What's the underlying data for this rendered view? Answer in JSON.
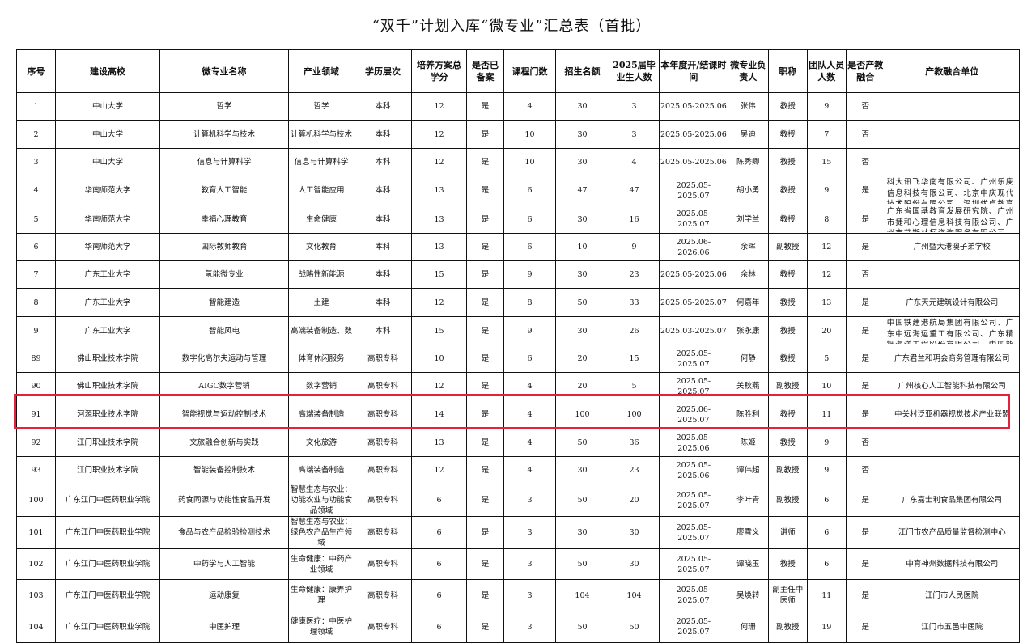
{
  "title": "“双千”计划入库“微专业”汇总表（首批）",
  "highlight_color": "#e3223c",
  "columns": [
    "序号",
    "建设高校",
    "微专业名称",
    "产业领域",
    "学历层次",
    "培养方案总学分",
    "是否已备案",
    "课程门数",
    "招生名额",
    "2025届毕业生人数",
    "本年度开/结课时间",
    "微专业负责人",
    "职称",
    "团队人员人数",
    "是否产教融合",
    "产教融合单位"
  ],
  "rows": [
    [
      "1",
      "中山大学",
      "哲学",
      "哲学",
      "本科",
      "12",
      "是",
      "4",
      "30",
      "3",
      "2025.05-2025.06",
      "张伟",
      "教授",
      "9",
      "否",
      ""
    ],
    [
      "2",
      "中山大学",
      "计算机科学与技术",
      "计算机科学与技术",
      "本科",
      "12",
      "是",
      "10",
      "30",
      "3",
      "2025.05-2025.06",
      "吴迪",
      "教授",
      "7",
      "否",
      ""
    ],
    [
      "3",
      "中山大学",
      "信息与计算科学",
      "信息与计算科学",
      "本科",
      "12",
      "是",
      "10",
      "30",
      "4",
      "2025.05-2025.06",
      "陈秀卿",
      "教授",
      "15",
      "否",
      ""
    ],
    [
      "4",
      "华南师范大学",
      "教育人工智能",
      "人工智能应用",
      "本科",
      "13",
      "是",
      "6",
      "47",
      "47",
      "2025.05-2025.07",
      "胡小勇",
      "教授",
      "9",
      "是",
      "科大讯飞华南有限公司、广州乐庚信息科技有限公司、北京中庆现代技术股份有限公司、深圳优卓教育科技有"
    ],
    [
      "5",
      "华南师范大学",
      "幸福心理教育",
      "生命健康",
      "本科",
      "13",
      "是",
      "6",
      "30",
      "16",
      "2025.05-2025.07",
      "刘学兰",
      "教授",
      "8",
      "是",
      "广东省国基教育发展研究院、广州市捷和心理信息科技有限公司、广州市艾斯林柯咨询服务有限公司、广东数"
    ],
    [
      "6",
      "华南师范大学",
      "国际教师教育",
      "文化教育",
      "本科",
      "13",
      "是",
      "6",
      "10",
      "9",
      "2025.06-2026.06",
      "余晖",
      "副教授",
      "12",
      "是",
      "广州暨大港澳子弟学校"
    ],
    [
      "7",
      "广东工业大学",
      "氢能微专业",
      "战略性新能源",
      "本科",
      "15",
      "是",
      "9",
      "30",
      "23",
      "2025.05-2025.06",
      "余林",
      "教授",
      "12",
      "否",
      ""
    ],
    [
      "8",
      "广东工业大学",
      "智能建造",
      "土建",
      "本科",
      "12",
      "是",
      "8",
      "50",
      "33",
      "2025.05-2025.07",
      "何嘉年",
      "教授",
      "13",
      "是",
      "广东天元建筑设计有限公司"
    ],
    [
      "9",
      "广东工业大学",
      "智能风电",
      "高端装备制造、数",
      "本科",
      "15",
      "是",
      "9",
      "30",
      "26",
      "2025.03-2025.07",
      "张永康",
      "教授",
      "20",
      "是",
      "中国铁建港航局集团有限公司、广东中远海运重工有限公司、广东精铟海洋工程股份有限公司、中国能源建设"
    ],
    [
      "89",
      "佛山职业技术学院",
      "数字化高尔夫运动与管理",
      "体育休闲服务",
      "高职专科",
      "10",
      "是",
      "6",
      "20",
      "15",
      "2025.05-2025.07",
      "何静",
      "教授",
      "5",
      "是",
      "广东君兰和玥会商务管理有限公司"
    ],
    [
      "90",
      "佛山职业技术学院",
      "AIGC数字营销",
      "数字营销",
      "高职专科",
      "12",
      "是",
      "4",
      "20",
      "5",
      "2025.05-2025.07",
      "关秋燕",
      "副教授",
      "10",
      "是",
      "广州核心人工智能科技有限公司"
    ],
    [
      "91",
      "河源职业技术学院",
      "智能视觉与运动控制技术",
      "高端装备制造",
      "高职专科",
      "14",
      "是",
      "4",
      "100",
      "100",
      "2025.06-2025.07",
      "陈胜利",
      "教授",
      "11",
      "是",
      "中关村泛亚机器视觉技术产业联盟"
    ],
    [
      "92",
      "江门职业技术学院",
      "文旅融合创新与实践",
      "文化旅游",
      "高职专科",
      "13",
      "是",
      "4",
      "50",
      "36",
      "2025.05-2025.06",
      "陈姬",
      "教授",
      "9",
      "否",
      ""
    ],
    [
      "93",
      "江门职业技术学院",
      "智能装备控制技术",
      "高端装备制造",
      "高职专科",
      "12",
      "是",
      "4",
      "30",
      "23",
      "2025.05-2025.06",
      "谭伟超",
      "副教授",
      "9",
      "否",
      ""
    ],
    [
      "100",
      "广东江门中医药职业学院",
      "药食同源与功能性食品开发",
      "智慧生态与农业：功能农业与功能食品领域",
      "高职专科",
      "6",
      "是",
      "3",
      "50",
      "20",
      "2025.05-2025.07",
      "李叶青",
      "副教授",
      "6",
      "是",
      "广东嘉士利食品集团有限公司"
    ],
    [
      "101",
      "广东江门中医药职业学院",
      "食品与农产品检验检测技术",
      "智慧生态与农业：绿色农产品生产领域",
      "高职专科",
      "6",
      "是",
      "3",
      "30",
      "30",
      "2025.05-2025.07",
      "廖雪义",
      "讲师",
      "6",
      "是",
      "江门市农产品质量监督检测中心"
    ],
    [
      "102",
      "广东江门中医药职业学院",
      "中药学与人工智能",
      "生命健康：中药产业领域",
      "高职专科",
      "6",
      "是",
      "3",
      "50",
      "30",
      "2025.05-2025.07",
      "谭晓玉",
      "教授",
      "6",
      "是",
      "中育神州数据科技有限公司"
    ],
    [
      "103",
      "广东江门中医药职业学院",
      "运动康复",
      "生命健康：康养护理",
      "高职专科",
      "6",
      "是",
      "3",
      "104",
      "104",
      "2025.05-2025.07",
      "吴焕转",
      "副主任中医师",
      "11",
      "是",
      "江门市人民医院"
    ],
    [
      "104",
      "广东江门中医药职业学院",
      "中医护理",
      "健康医疗：中医护理领域",
      "高职专科",
      "6",
      "是",
      "3",
      "50",
      "50",
      "2025.05-2025.07",
      "何珊",
      "副教授",
      "19",
      "是",
      "江门市五邑中医院"
    ]
  ]
}
